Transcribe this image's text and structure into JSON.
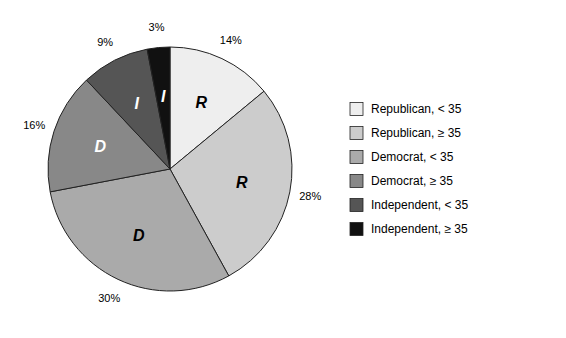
{
  "chart_data": {
    "type": "pie",
    "categories": [
      "Republican, < 35",
      "Republican, ≥ 35",
      "Democrat, < 35",
      "Democrat, ≥ 35",
      "Independent, < 35",
      "Independent, ≥ 35"
    ],
    "values": [
      14,
      28,
      30,
      16,
      9,
      3
    ],
    "value_labels": [
      "14%",
      "28%",
      "30%",
      "16%",
      "9%",
      "3%"
    ],
    "slice_labels": [
      "R",
      "R",
      "D",
      "D",
      "I",
      "I"
    ],
    "colors": [
      "#eeeeee",
      "#cccccc",
      "#aaaaaa",
      "#888888",
      "#555555",
      "#111111"
    ],
    "data_labels": true,
    "legend": "right"
  }
}
